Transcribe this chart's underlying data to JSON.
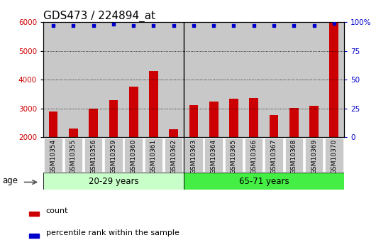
{
  "title": "GDS473 / 224894_at",
  "categories": [
    "GSM10354",
    "GSM10355",
    "GSM10356",
    "GSM10359",
    "GSM10360",
    "GSM10361",
    "GSM10362",
    "GSM10363",
    "GSM10364",
    "GSM10365",
    "GSM10366",
    "GSM10367",
    "GSM10368",
    "GSM10369",
    "GSM10370"
  ],
  "bar_values": [
    2900,
    2300,
    3000,
    3280,
    3750,
    4300,
    2280,
    3120,
    3230,
    3340,
    3360,
    2780,
    3020,
    3100,
    6000
  ],
  "percentile_values": [
    97,
    97,
    97,
    98,
    97,
    97,
    97,
    97,
    97,
    97,
    97,
    97,
    97,
    97,
    99
  ],
  "bar_color": "#cc0000",
  "dot_color": "#0000cc",
  "ylim_left": [
    2000,
    6000
  ],
  "ylim_right": [
    0,
    100
  ],
  "yticks_left": [
    2000,
    3000,
    4000,
    5000,
    6000
  ],
  "yticks_right": [
    0,
    25,
    50,
    75,
    100
  ],
  "group1_label": "20-29 years",
  "group2_label": "65-71 years",
  "group1_count": 7,
  "group2_count": 8,
  "age_label": "age",
  "legend_count": "count",
  "legend_percentile": "percentile rank within the sample",
  "col_bg_color": "#c8c8c8",
  "group1_bg": "#c8ffc8",
  "group2_bg": "#44ee44",
  "grid_color": "black",
  "title_fontsize": 11,
  "tick_fontsize": 7.5,
  "bar_width": 0.45,
  "plot_bg": "#ffffff"
}
